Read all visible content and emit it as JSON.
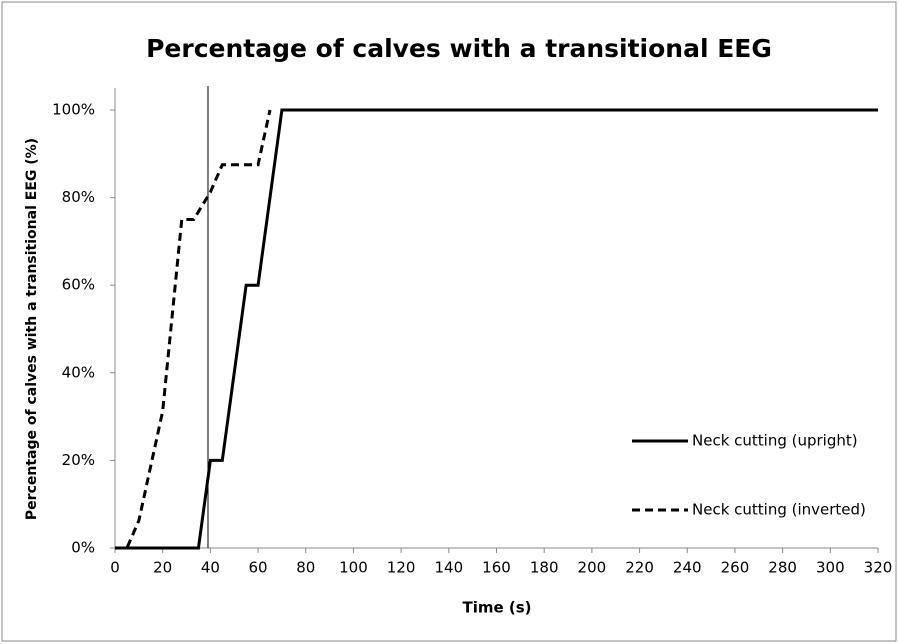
{
  "chart_data": {
    "type": "line",
    "title": "Percentage of calves with a transitional EEG",
    "x_label": "Time (s)",
    "y_label": "Percentage of calves with a transitional EEG (%)",
    "series": [
      {
        "name": "Neck cutting (upright)",
        "color": "#000000",
        "dash": "solid",
        "x": [
          0,
          35,
          40,
          45,
          55,
          60,
          70,
          320
        ],
        "values": [
          0,
          0,
          20,
          20,
          60,
          60,
          100,
          100
        ]
      },
      {
        "name": "Neck cutting (inverted)",
        "color": "#000000",
        "dash": "dashed",
        "x": [
          0,
          5,
          10,
          20,
          28,
          33,
          40,
          45,
          60,
          65
        ],
        "values": [
          0,
          0,
          6.25,
          31.25,
          75,
          75,
          81.25,
          87.5,
          87.5,
          100
        ]
      }
    ],
    "vline": 39,
    "xlim": [
      0,
      320
    ],
    "xticks": [
      0,
      20,
      40,
      60,
      80,
      100,
      120,
      140,
      160,
      180,
      200,
      220,
      240,
      260,
      280,
      300,
      320
    ],
    "ylim": [
      0,
      100
    ],
    "yticks": [
      {
        "value": 0,
        "label": "0%"
      },
      {
        "value": 20,
        "label": "20%"
      },
      {
        "value": 40,
        "label": "40%"
      },
      {
        "value": 60,
        "label": "60%"
      },
      {
        "value": 80,
        "label": "80%"
      },
      {
        "value": 100,
        "label": "100%"
      }
    ],
    "grid": false,
    "legend": "right"
  }
}
